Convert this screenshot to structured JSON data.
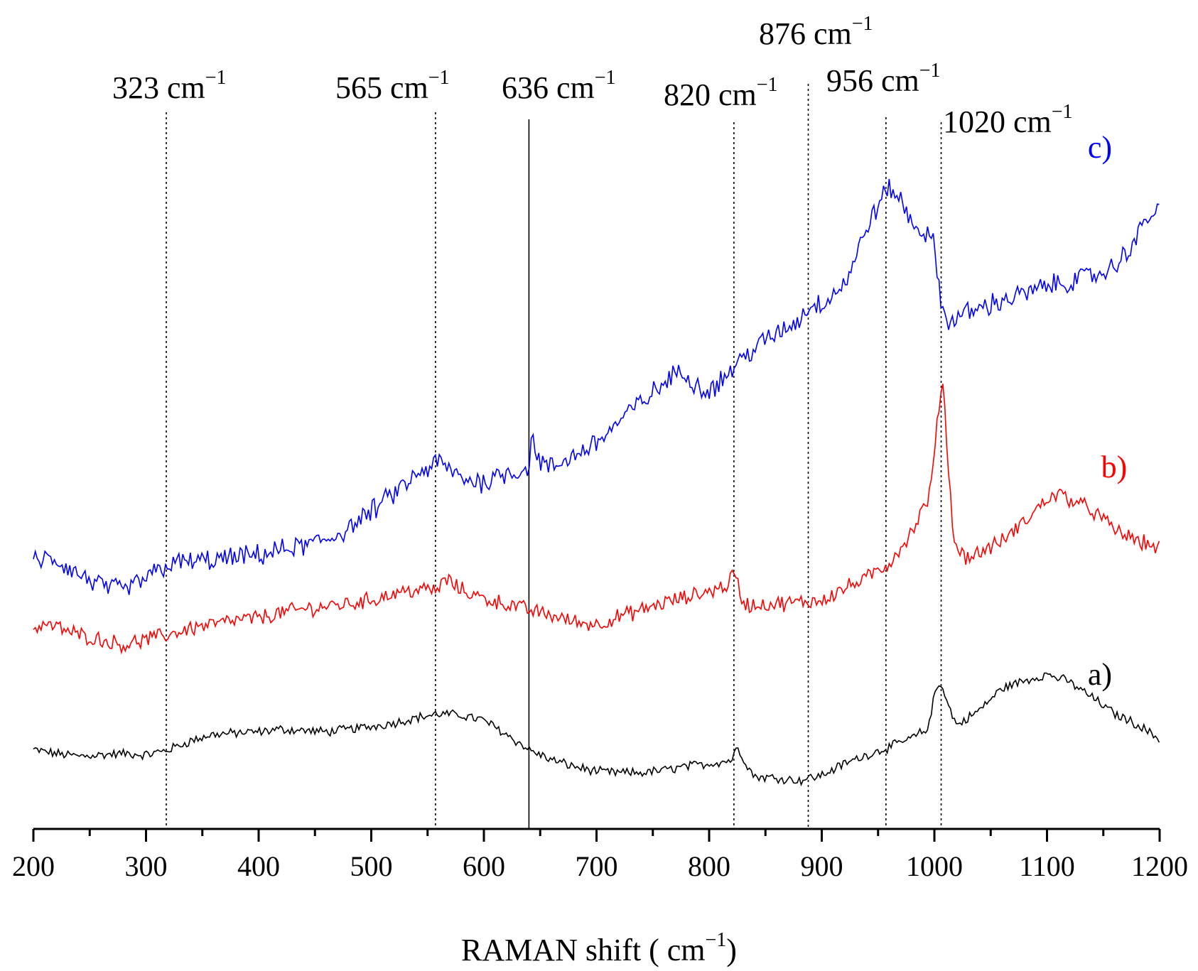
{
  "chart_data": {
    "type": "line",
    "xlabel": "RAMAN shift ( cm",
    "xlabel_sup": "−1",
    "xlabel_tail": ")",
    "xlim": [
      200,
      1200
    ],
    "xticks": [
      200,
      300,
      400,
      500,
      600,
      700,
      800,
      900,
      1000,
      1100,
      1200
    ],
    "ylabel": "",
    "grid": false,
    "reference_lines": [
      {
        "x": 318,
        "label": "323 cm",
        "sup": "−1",
        "style": "dotted"
      },
      {
        "x": 557,
        "label": "565 cm",
        "sup": "−1",
        "style": "dotted"
      },
      {
        "x": 640,
        "label": "636 cm",
        "sup": "−1",
        "style": "solid"
      },
      {
        "x": 822,
        "label": "820 cm",
        "sup": "−1",
        "style": "dotted"
      },
      {
        "x": 888,
        "label": "876 cm",
        "sup": "−1",
        "style": "dotted"
      },
      {
        "x": 957,
        "label": "956 cm",
        "sup": "−1",
        "style": "dotted"
      },
      {
        "x": 1006,
        "label": "1020 cm",
        "sup": "−1",
        "style": "dotted"
      }
    ],
    "series": [
      {
        "name": "a)",
        "color": "#000000",
        "x": [
          200,
          220,
          240,
          260,
          280,
          300,
          320,
          340,
          360,
          380,
          400,
          420,
          440,
          460,
          480,
          500,
          520,
          540,
          560,
          580,
          600,
          620,
          640,
          660,
          680,
          700,
          720,
          740,
          760,
          780,
          800,
          820,
          825,
          830,
          840,
          860,
          880,
          900,
          920,
          940,
          960,
          980,
          995,
          1000,
          1006,
          1012,
          1020,
          1040,
          1060,
          1080,
          1100,
          1120,
          1140,
          1160,
          1180,
          1200
        ],
        "y": [
          0.8,
          0.5,
          0.3,
          0.4,
          0.5,
          0.4,
          0.8,
          1.5,
          2.0,
          2.1,
          2.2,
          2.4,
          2.3,
          2.2,
          2.4,
          2.6,
          2.9,
          3.3,
          3.6,
          3.5,
          3.1,
          2.0,
          0.8,
          0.0,
          -0.5,
          -0.9,
          -1.0,
          -1.0,
          -0.8,
          -0.5,
          -0.3,
          0.0,
          1.0,
          0.2,
          -1.3,
          -1.4,
          -1.6,
          -1.2,
          -0.3,
          0.4,
          1.0,
          1.7,
          2.5,
          5.2,
          6.1,
          4.3,
          2.7,
          3.9,
          5.6,
          6.2,
          6.7,
          6.1,
          4.9,
          3.6,
          2.8,
          1.6
        ]
      },
      {
        "name": "b)",
        "color": "#ff0000",
        "x": [
          200,
          210,
          220,
          240,
          260,
          280,
          300,
          320,
          340,
          360,
          380,
          400,
          420,
          440,
          460,
          480,
          500,
          520,
          540,
          560,
          565,
          580,
          600,
          620,
          640,
          660,
          680,
          700,
          720,
          740,
          760,
          780,
          800,
          815,
          822,
          826,
          830,
          840,
          860,
          880,
          900,
          920,
          940,
          960,
          980,
          995,
          1000,
          1005,
          1008,
          1012,
          1016,
          1020,
          1030,
          1040,
          1060,
          1080,
          1100,
          1110,
          1120,
          1140,
          1160,
          1180,
          1200
        ],
        "y": [
          10.2,
          10.6,
          10.4,
          9.8,
          9.4,
          9.0,
          9.4,
          9.8,
          10.3,
          10.6,
          10.9,
          11.1,
          11.5,
          11.8,
          12.0,
          12.2,
          12.5,
          13.0,
          13.3,
          13.3,
          14.2,
          13.3,
          12.6,
          12.2,
          11.7,
          11.3,
          10.8,
          10.6,
          11.2,
          11.7,
          12.3,
          12.7,
          13.2,
          13.6,
          14.6,
          13.6,
          12.2,
          12.1,
          12.2,
          12.3,
          12.5,
          13.4,
          14.2,
          15.4,
          17.8,
          20.5,
          23.5,
          28.8,
          29.3,
          23.5,
          18.3,
          16.5,
          15.8,
          16.2,
          17.1,
          18.6,
          20.4,
          20.8,
          20.4,
          19.5,
          18.0,
          17.1,
          16.6
        ]
      },
      {
        "name": "c)",
        "color": "#0000ff",
        "x": [
          200,
          210,
          220,
          240,
          260,
          280,
          300,
          320,
          340,
          360,
          380,
          400,
          420,
          440,
          460,
          480,
          500,
          520,
          540,
          560,
          580,
          600,
          620,
          635,
          640,
          643,
          650,
          660,
          680,
          700,
          720,
          740,
          760,
          775,
          790,
          800,
          810,
          822,
          840,
          860,
          880,
          888,
          900,
          920,
          930,
          940,
          950,
          960,
          970,
          980,
          990,
          1000,
          1005,
          1010,
          1015,
          1020,
          1040,
          1060,
          1080,
          1100,
          1120,
          1140,
          1160,
          1170,
          1180,
          1190,
          1200
        ],
        "y": [
          15.5,
          15.7,
          15.6,
          14.5,
          13.6,
          13.2,
          14.2,
          15.3,
          15.5,
          15.6,
          15.8,
          16.0,
          16.4,
          16.7,
          17.2,
          18.1,
          19.4,
          20.8,
          22.2,
          23.3,
          22.0,
          21.7,
          22.5,
          22.6,
          23.0,
          25.3,
          23.2,
          22.8,
          23.8,
          24.8,
          26.4,
          28.0,
          29.4,
          30.5,
          29.2,
          28.9,
          29.6,
          30.7,
          32.2,
          33.3,
          34.4,
          35.4,
          35.7,
          37.2,
          39.1,
          41.7,
          43.3,
          44.8,
          43.7,
          42.0,
          41.3,
          40.2,
          36.4,
          34.2,
          34.4,
          34.6,
          35.3,
          35.9,
          36.4,
          37.0,
          37.4,
          37.8,
          38.5,
          39.7,
          40.8,
          42.5,
          43.0
        ]
      }
    ]
  }
}
